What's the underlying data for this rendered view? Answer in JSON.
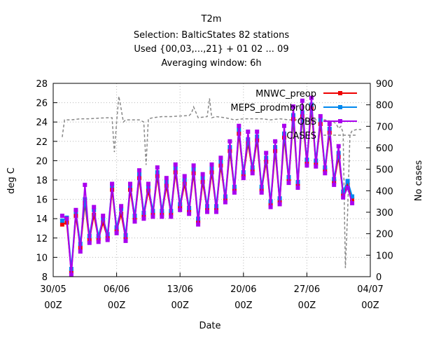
{
  "chart_data": {
    "type": "line",
    "title_lines": [
      "T2m",
      "Selection: BalticStates     82 stations",
      "Used {00,03,...,21} + 01 02 ... 09",
      "Averaging window:  6h"
    ],
    "xlabel": "Date",
    "ylabel": "deg C",
    "y2label": "No cases",
    "xlim": [
      "2024-05-30T00:00",
      "2024-07-04T00:00"
    ],
    "ylim": [
      8,
      28
    ],
    "y2lim": [
      0,
      900
    ],
    "x_ticks": [
      {
        "date": "2024-05-30T00:00",
        "label1": "30/05",
        "label2": "00Z"
      },
      {
        "date": "2024-06-06T00:00",
        "label1": "06/06",
        "label2": "00Z"
      },
      {
        "date": "2024-06-13T00:00",
        "label1": "13/06",
        "label2": "00Z"
      },
      {
        "date": "2024-06-20T00:00",
        "label1": "20/06",
        "label2": "00Z"
      },
      {
        "date": "2024-06-27T00:00",
        "label1": "27/06",
        "label2": "00Z"
      },
      {
        "date": "2024-07-04T00:00",
        "label1": "04/07",
        "label2": "00Z"
      }
    ],
    "y_ticks": [
      8,
      10,
      12,
      14,
      16,
      18,
      20,
      22,
      24,
      26,
      28
    ],
    "y2_ticks": [
      0,
      100,
      200,
      300,
      400,
      500,
      600,
      700,
      800,
      900
    ],
    "grid": true,
    "legend_position": "top-right",
    "series": [
      {
        "name": "MNWC_preop",
        "axis": "y",
        "color": "#ee0000",
        "marker": "square",
        "x": [
          "2024-05-31T00:00",
          "2024-05-31T12:00",
          "2024-06-01T00:00",
          "2024-06-01T12:00",
          "2024-06-02T00:00",
          "2024-06-02T12:00",
          "2024-06-03T00:00",
          "2024-06-03T12:00",
          "2024-06-04T00:00",
          "2024-06-04T12:00",
          "2024-06-05T00:00",
          "2024-06-05T12:00",
          "2024-06-06T00:00",
          "2024-06-06T12:00",
          "2024-06-07T00:00",
          "2024-06-07T12:00",
          "2024-06-08T00:00",
          "2024-06-08T12:00",
          "2024-06-09T00:00",
          "2024-06-09T12:00",
          "2024-06-10T00:00",
          "2024-06-10T12:00",
          "2024-06-11T00:00",
          "2024-06-11T12:00",
          "2024-06-12T00:00",
          "2024-06-12T12:00",
          "2024-06-13T00:00",
          "2024-06-13T12:00",
          "2024-06-14T00:00",
          "2024-06-14T12:00",
          "2024-06-15T00:00",
          "2024-06-15T12:00",
          "2024-06-16T00:00",
          "2024-06-16T12:00",
          "2024-06-17T00:00",
          "2024-06-17T12:00",
          "2024-06-18T00:00",
          "2024-06-18T12:00",
          "2024-06-19T00:00",
          "2024-06-19T12:00",
          "2024-06-20T00:00",
          "2024-06-20T12:00",
          "2024-06-21T00:00",
          "2024-06-21T12:00",
          "2024-06-22T00:00",
          "2024-06-22T12:00",
          "2024-06-23T00:00",
          "2024-06-23T12:00",
          "2024-06-24T00:00",
          "2024-06-24T12:00",
          "2024-06-25T00:00",
          "2024-06-25T12:00",
          "2024-06-26T00:00",
          "2024-06-26T12:00",
          "2024-06-27T00:00",
          "2024-06-27T12:00",
          "2024-06-28T00:00",
          "2024-06-28T12:00",
          "2024-06-29T00:00",
          "2024-06-29T12:00",
          "2024-06-30T00:00",
          "2024-06-30T12:00",
          "2024-07-01T00:00",
          "2024-07-01T12:00",
          "2024-07-02T00:00"
        ],
        "y": [
          13.4,
          13.6,
          8.5,
          14.3,
          11.0,
          15.6,
          11.8,
          14.4,
          11.9,
          13.6,
          12.0,
          17.0,
          12.8,
          14.5,
          12.0,
          17.0,
          14.0,
          18.2,
          14.3,
          16.9,
          14.5,
          18.4,
          14.5,
          17.4,
          14.5,
          18.8,
          15.2,
          17.6,
          14.8,
          18.7,
          13.7,
          17.8,
          15.0,
          18.8,
          15.0,
          19.5,
          16.0,
          21.0,
          17.0,
          22.8,
          18.5,
          21.8,
          19.0,
          22.1,
          17.0,
          19.9,
          15.5,
          21.0,
          15.8,
          22.4,
          18.0,
          24.3,
          17.5,
          24.6,
          19.8,
          25.4,
          19.7,
          23.8,
          19.0,
          22.9,
          17.8,
          20.4,
          16.5,
          17.5,
          16.0
        ]
      },
      {
        "name": "MEPS_prodmbr000",
        "axis": "y",
        "color": "#0088ee",
        "marker": "star",
        "x": [
          "2024-05-31T00:00",
          "2024-05-31T12:00",
          "2024-06-01T00:00",
          "2024-06-01T12:00",
          "2024-06-02T00:00",
          "2024-06-02T12:00",
          "2024-06-03T00:00",
          "2024-06-03T12:00",
          "2024-06-04T00:00",
          "2024-06-04T12:00",
          "2024-06-05T00:00",
          "2024-06-05T12:00",
          "2024-06-06T00:00",
          "2024-06-06T12:00",
          "2024-06-07T00:00",
          "2024-06-07T12:00",
          "2024-06-08T00:00",
          "2024-06-08T12:00",
          "2024-06-09T00:00",
          "2024-06-09T12:00",
          "2024-06-10T00:00",
          "2024-06-10T12:00",
          "2024-06-11T00:00",
          "2024-06-11T12:00",
          "2024-06-12T00:00",
          "2024-06-12T12:00",
          "2024-06-13T00:00",
          "2024-06-13T12:00",
          "2024-06-14T00:00",
          "2024-06-14T12:00",
          "2024-06-15T00:00",
          "2024-06-15T12:00",
          "2024-06-16T00:00",
          "2024-06-16T12:00",
          "2024-06-17T00:00",
          "2024-06-17T12:00",
          "2024-06-18T00:00",
          "2024-06-18T12:00",
          "2024-06-19T00:00",
          "2024-06-19T12:00",
          "2024-06-20T00:00",
          "2024-06-20T12:00",
          "2024-06-21T00:00",
          "2024-06-21T12:00",
          "2024-06-22T00:00",
          "2024-06-22T12:00",
          "2024-06-23T00:00",
          "2024-06-23T12:00",
          "2024-06-24T00:00",
          "2024-06-24T12:00",
          "2024-06-25T00:00",
          "2024-06-25T12:00",
          "2024-06-26T00:00",
          "2024-06-26T12:00",
          "2024-06-27T00:00",
          "2024-06-27T12:00",
          "2024-06-28T00:00",
          "2024-06-28T12:00",
          "2024-06-29T00:00",
          "2024-06-29T12:00",
          "2024-06-30T00:00",
          "2024-06-30T12:00",
          "2024-07-01T00:00",
          "2024-07-01T12:00",
          "2024-07-02T00:00"
        ],
        "y": [
          13.8,
          14.1,
          8.8,
          14.7,
          11.4,
          16.0,
          12.2,
          14.9,
          12.2,
          14.0,
          12.4,
          17.4,
          13.1,
          15.0,
          12.3,
          17.4,
          14.3,
          18.6,
          14.6,
          17.3,
          14.8,
          18.8,
          14.8,
          17.8,
          14.8,
          19.2,
          15.5,
          18.0,
          15.1,
          19.1,
          14.0,
          18.2,
          15.3,
          19.2,
          15.3,
          19.9,
          16.3,
          21.4,
          17.3,
          23.2,
          18.8,
          22.2,
          19.3,
          22.5,
          17.3,
          20.3,
          15.8,
          21.4,
          16.1,
          22.8,
          18.3,
          24.7,
          17.8,
          25.0,
          20.1,
          25.8,
          20.0,
          24.2,
          19.3,
          23.3,
          18.1,
          20.8,
          16.8,
          17.9,
          16.3
        ]
      },
      {
        "name": "OBS",
        "axis": "y",
        "color": "#aa00ee",
        "marker": "square",
        "x": [
          "2024-05-31T00:00",
          "2024-05-31T12:00",
          "2024-06-01T00:00",
          "2024-06-01T12:00",
          "2024-06-02T00:00",
          "2024-06-02T12:00",
          "2024-06-03T00:00",
          "2024-06-03T12:00",
          "2024-06-04T00:00",
          "2024-06-04T12:00",
          "2024-06-05T00:00",
          "2024-06-05T12:00",
          "2024-06-06T00:00",
          "2024-06-06T12:00",
          "2024-06-07T00:00",
          "2024-06-07T12:00",
          "2024-06-08T00:00",
          "2024-06-08T12:00",
          "2024-06-09T00:00",
          "2024-06-09T12:00",
          "2024-06-10T00:00",
          "2024-06-10T12:00",
          "2024-06-11T00:00",
          "2024-06-11T12:00",
          "2024-06-12T00:00",
          "2024-06-12T12:00",
          "2024-06-13T00:00",
          "2024-06-13T12:00",
          "2024-06-14T00:00",
          "2024-06-14T12:00",
          "2024-06-15T00:00",
          "2024-06-15T12:00",
          "2024-06-16T00:00",
          "2024-06-16T12:00",
          "2024-06-17T00:00",
          "2024-06-17T12:00",
          "2024-06-18T00:00",
          "2024-06-18T12:00",
          "2024-06-19T00:00",
          "2024-06-19T12:00",
          "2024-06-20T00:00",
          "2024-06-20T12:00",
          "2024-06-21T00:00",
          "2024-06-21T12:00",
          "2024-06-22T00:00",
          "2024-06-22T12:00",
          "2024-06-23T00:00",
          "2024-06-23T12:00",
          "2024-06-24T00:00",
          "2024-06-24T12:00",
          "2024-06-25T00:00",
          "2024-06-25T12:00",
          "2024-06-26T00:00",
          "2024-06-26T12:00",
          "2024-06-27T00:00",
          "2024-06-27T12:00",
          "2024-06-28T00:00",
          "2024-06-28T12:00",
          "2024-06-29T00:00",
          "2024-06-29T12:00",
          "2024-06-30T00:00",
          "2024-06-30T12:00",
          "2024-07-01T00:00",
          "2024-07-01T12:00",
          "2024-07-02T00:00"
        ],
        "y": [
          14.3,
          14.0,
          8.2,
          14.9,
          10.6,
          17.5,
          11.5,
          15.2,
          11.6,
          14.3,
          11.8,
          17.6,
          12.5,
          15.3,
          11.7,
          17.6,
          13.7,
          19.0,
          14.0,
          17.6,
          14.2,
          19.3,
          14.2,
          18.2,
          14.2,
          19.6,
          14.9,
          18.4,
          14.5,
          19.5,
          13.4,
          18.6,
          14.7,
          19.6,
          14.7,
          20.3,
          15.7,
          22.0,
          16.7,
          23.6,
          18.2,
          23.0,
          18.7,
          23.0,
          16.7,
          20.8,
          15.2,
          22.0,
          15.5,
          23.6,
          17.7,
          25.6,
          17.2,
          26.2,
          19.5,
          26.5,
          19.4,
          24.6,
          18.7,
          23.8,
          17.5,
          21.5,
          16.2,
          17.2,
          15.6
        ]
      },
      {
        "name": "CASES",
        "axis": "y2",
        "color": "#888888",
        "dashed": true,
        "x": [
          "2024-05-31T00:00",
          "2024-05-31T06:00",
          "2024-06-01T00:00",
          "2024-06-02T00:00",
          "2024-06-03T00:00",
          "2024-06-04T00:00",
          "2024-06-05T00:00",
          "2024-06-05T12:00",
          "2024-06-05T18:00",
          "2024-06-06T00:00",
          "2024-06-06T06:00",
          "2024-06-06T12:00",
          "2024-06-06T18:00",
          "2024-06-07T00:00",
          "2024-06-07T12:00",
          "2024-06-08T00:00",
          "2024-06-08T12:00",
          "2024-06-09T00:00",
          "2024-06-09T06:00",
          "2024-06-09T12:00",
          "2024-06-10T00:00",
          "2024-06-11T00:00",
          "2024-06-12T00:00",
          "2024-06-13T00:00",
          "2024-06-14T00:00",
          "2024-06-14T06:00",
          "2024-06-14T12:00",
          "2024-06-15T00:00",
          "2024-06-16T00:00",
          "2024-06-16T06:00",
          "2024-06-16T12:00",
          "2024-06-17T00:00",
          "2024-06-18T00:00",
          "2024-06-19T00:00",
          "2024-06-20T00:00",
          "2024-06-21T00:00",
          "2024-06-22T00:00",
          "2024-06-23T00:00",
          "2024-06-24T00:00",
          "2024-06-25T00:00",
          "2024-06-26T00:00",
          "2024-06-27T00:00",
          "2024-06-28T00:00",
          "2024-06-29T00:00",
          "2024-06-30T00:00",
          "2024-06-30T06:00",
          "2024-06-30T12:00",
          "2024-06-30T18:00",
          "2024-07-01T00:00",
          "2024-07-01T06:00",
          "2024-07-01T12:00",
          "2024-07-01T18:00",
          "2024-07-02T00:00",
          "2024-07-02T12:00",
          "2024-07-03T00:00"
        ],
        "y": [
          650,
          730,
          730,
          735,
          735,
          738,
          740,
          740,
          580,
          720,
          840,
          780,
          720,
          730,
          730,
          730,
          730,
          720,
          520,
          735,
          740,
          745,
          745,
          748,
          750,
          760,
          790,
          740,
          745,
          830,
          740,
          745,
          740,
          730,
          735,
          735,
          735,
          730,
          735,
          730,
          730,
          730,
          730,
          730,
          720,
          710,
          690,
          700,
          670,
          40,
          300,
          660,
          680,
          685,
          685
        ]
      }
    ]
  }
}
